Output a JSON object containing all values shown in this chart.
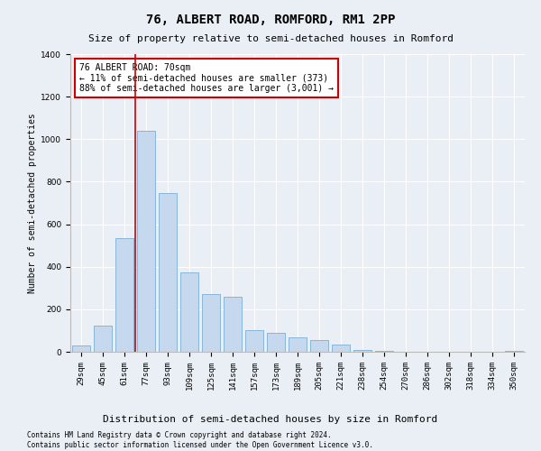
{
  "title1": "76, ALBERT ROAD, ROMFORD, RM1 2PP",
  "title2": "Size of property relative to semi-detached houses in Romford",
  "xlabel": "Distribution of semi-detached houses by size in Romford",
  "ylabel": "Number of semi-detached properties",
  "categories": [
    "29sqm",
    "45sqm",
    "61sqm",
    "77sqm",
    "93sqm",
    "109sqm",
    "125sqm",
    "141sqm",
    "157sqm",
    "173sqm",
    "189sqm",
    "205sqm",
    "221sqm",
    "238sqm",
    "254sqm",
    "270sqm",
    "286sqm",
    "302sqm",
    "318sqm",
    "334sqm",
    "350sqm"
  ],
  "values": [
    30,
    125,
    535,
    1040,
    745,
    375,
    270,
    260,
    100,
    90,
    70,
    55,
    35,
    10,
    5,
    2,
    2,
    1,
    0,
    0,
    5
  ],
  "bar_color": "#c5d8ed",
  "bar_edge_color": "#7bafd4",
  "annotation_text_line1": "76 ALBERT ROAD: 70sqm",
  "annotation_text_line2": "← 11% of semi-detached houses are smaller (373)",
  "annotation_text_line3": "88% of semi-detached houses are larger (3,001) →",
  "vline_color": "#cc0000",
  "annotation_box_color": "#cc0000",
  "footer1": "Contains HM Land Registry data © Crown copyright and database right 2024.",
  "footer2": "Contains public sector information licensed under the Open Government Licence v3.0.",
  "ylim": [
    0,
    1400
  ],
  "background_color": "#eaeff5",
  "plot_background": "#eaeff5",
  "grid_color": "#ffffff",
  "title1_fontsize": 10,
  "title2_fontsize": 8,
  "ylabel_fontsize": 7,
  "xlabel_fontsize": 8,
  "tick_fontsize": 6.5,
  "annotation_fontsize": 7,
  "footer_fontsize": 5.5
}
